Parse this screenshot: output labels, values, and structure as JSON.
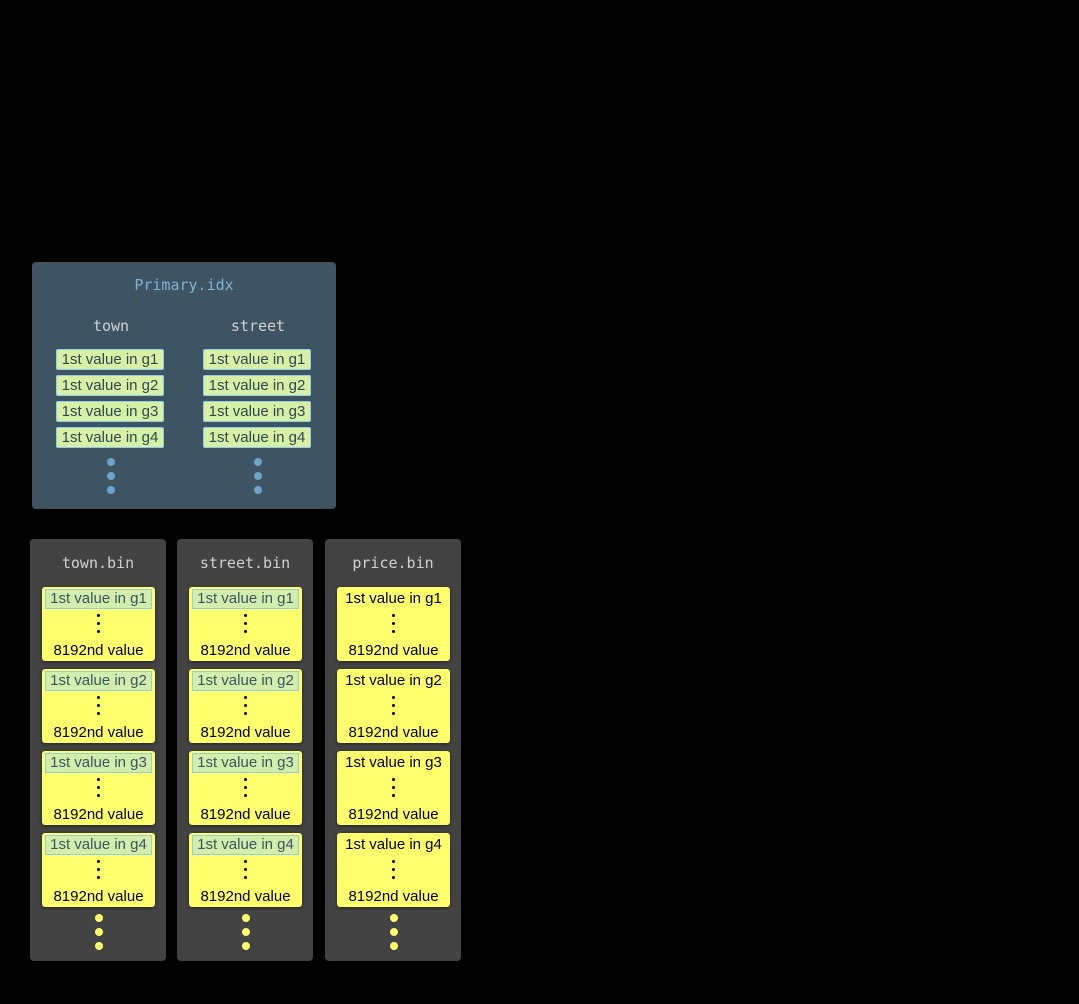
{
  "primary_index": {
    "title": "Primary.idx",
    "columns": [
      {
        "header": "town",
        "cells": [
          "1st value in g1",
          "1st value in g2",
          "1st value in g3",
          "1st value in g4"
        ]
      },
      {
        "header": "street",
        "cells": [
          "1st value in g1",
          "1st value in g2",
          "1st value in g3",
          "1st value in g4"
        ]
      }
    ]
  },
  "bins": [
    {
      "title": "town.bin",
      "highlighted": true,
      "granules": [
        {
          "first": "1st value in g1",
          "last": "8192nd value"
        },
        {
          "first": "1st value in g2",
          "last": "8192nd value"
        },
        {
          "first": "1st value in g3",
          "last": "8192nd value"
        },
        {
          "first": "1st value in g4",
          "last": "8192nd value"
        }
      ]
    },
    {
      "title": "street.bin",
      "highlighted": true,
      "granules": [
        {
          "first": "1st value in g1",
          "last": "8192nd value"
        },
        {
          "first": "1st value in g2",
          "last": "8192nd value"
        },
        {
          "first": "1st value in g3",
          "last": "8192nd value"
        },
        {
          "first": "1st value in g4",
          "last": "8192nd value"
        }
      ]
    },
    {
      "title": "price.bin",
      "highlighted": false,
      "granules": [
        {
          "first": "1st value in g1",
          "last": "8192nd value"
        },
        {
          "first": "1st value in g2",
          "last": "8192nd value"
        },
        {
          "first": "1st value in g3",
          "last": "8192nd value"
        },
        {
          "first": "1st value in g4",
          "last": "8192nd value"
        }
      ]
    }
  ],
  "colors": {
    "index_bg": "#3e5463",
    "bin_bg": "#434343",
    "granule": "#ffff6e",
    "index_cell": "#d8f0a6",
    "index_dots": "#6fa3c7",
    "bin_dots": "#ffff6e"
  }
}
